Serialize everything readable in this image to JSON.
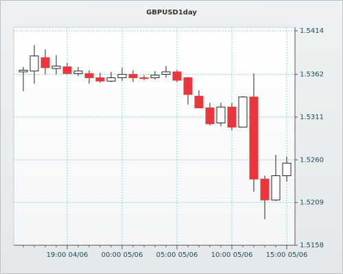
{
  "chart_data": {
    "type": "candlestick",
    "title": "GBPUSD1day",
    "categories": [
      null,
      null,
      null,
      null,
      "19:00 04/06",
      null,
      null,
      null,
      null,
      "00:00 05/06",
      null,
      null,
      null,
      null,
      "05:00 05/06",
      null,
      null,
      null,
      null,
      "10:00 05/06",
      null,
      null,
      null,
      null,
      "15:00 05/06"
    ],
    "open": [
      1.5365,
      1.5366,
      1.5382,
      1.5369,
      1.5371,
      1.5363,
      1.5363,
      1.5358,
      1.5354,
      1.5358,
      1.5362,
      1.5358,
      1.5358,
      1.5362,
      1.5365,
      1.5358,
      1.5336,
      1.5322,
      1.5304,
      1.5323,
      1.5299,
      1.5335,
      1.5237,
      1.5212,
      1.5241
    ],
    "high": [
      1.5371,
      1.5397,
      1.5392,
      1.5385,
      1.5376,
      1.5371,
      1.5367,
      1.5364,
      1.5365,
      1.537,
      1.5367,
      1.5361,
      1.5366,
      1.5372,
      1.5367,
      1.5359,
      1.5343,
      1.5328,
      1.5328,
      1.5328,
      1.5336,
      1.5363,
      1.5241,
      1.5266,
      1.5264
    ],
    "low": [
      1.5342,
      1.5351,
      1.5362,
      1.5362,
      1.5362,
      1.536,
      1.5351,
      1.5352,
      1.5353,
      1.5354,
      1.5353,
      1.5355,
      1.5356,
      1.5358,
      1.5353,
      1.5326,
      1.5322,
      1.5301,
      1.53,
      1.5295,
      1.5299,
      1.5222,
      1.5189,
      1.5211,
      1.5234
    ],
    "close": [
      1.5367,
      1.5384,
      1.537,
      1.5372,
      1.5363,
      1.5366,
      1.5358,
      1.5354,
      1.5358,
      1.5362,
      1.5358,
      1.5357,
      1.5361,
      1.5365,
      1.5355,
      1.5338,
      1.5322,
      1.5303,
      1.5323,
      1.5299,
      1.5335,
      1.5237,
      1.5212,
      1.5241,
      1.5256
    ],
    "up_color": "#ffffff",
    "down_color": "#e8383d",
    "ylim": [
      1.5158,
      1.5414
    ],
    "yticks": [
      1.5158,
      1.5209,
      {
        "value": 1.526,
        "label": "1.5260"
      },
      1.5311,
      1.5362,
      1.5414
    ],
    "grid": true
  }
}
